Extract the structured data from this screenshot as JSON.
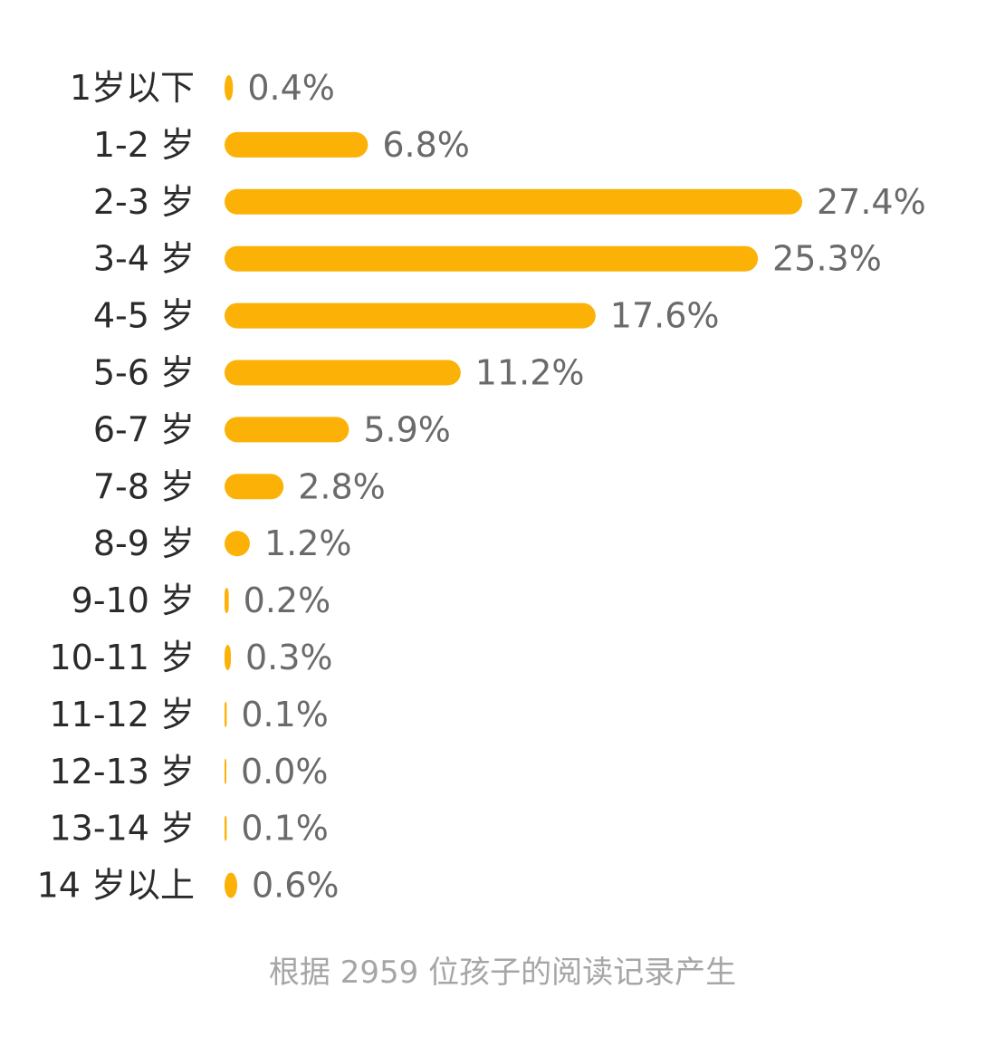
{
  "chart_data": {
    "type": "bar",
    "orientation": "horizontal",
    "categories": [
      "1岁以下",
      "1-2 岁",
      "2-3 岁",
      "3-4 岁",
      "4-5 岁",
      "5-6 岁",
      "6-7 岁",
      "7-8 岁",
      "8-9 岁",
      "9-10 岁",
      "10-11 岁",
      "11-12 岁",
      "12-13 岁",
      "13-14 岁",
      "14 岁以上"
    ],
    "values": [
      0.4,
      6.8,
      27.4,
      25.3,
      17.6,
      11.2,
      5.9,
      2.8,
      1.2,
      0.2,
      0.3,
      0.1,
      0.0,
      0.1,
      0.6
    ],
    "value_labels": [
      "0.4%",
      "6.8%",
      "27.4%",
      "25.3%",
      "17.6%",
      "11.2%",
      "5.9%",
      "2.8%",
      "1.2%",
      "0.2%",
      "0.3%",
      "0.1%",
      "0.0%",
      "0.1%",
      "0.6%"
    ],
    "unit": "%",
    "xlim": [
      0,
      27.4
    ],
    "grid": false,
    "legend": "none",
    "bar_color": "#FBB106",
    "footnote": "根据 2959 位孩子的阅读记录产生"
  }
}
